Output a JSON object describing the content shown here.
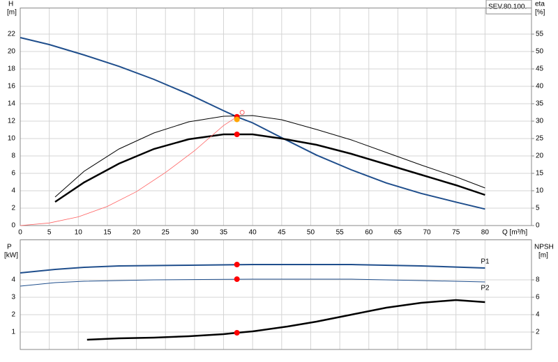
{
  "chart_data": [
    {
      "type": "line",
      "title": "SEV.80.100.",
      "y_label": "H",
      "y_unit": "[m]",
      "y2_label": "eta",
      "y2_unit": "[%]",
      "x_label": "Q [m³/h]",
      "xlim": [
        0,
        88
      ],
      "xticks": [
        0,
        5,
        10,
        15,
        20,
        25,
        30,
        35,
        40,
        45,
        50,
        55,
        60,
        65,
        70,
        75,
        80
      ],
      "ylim": [
        0,
        25
      ],
      "yticks": [
        0,
        2,
        4,
        6,
        8,
        10,
        12,
        14,
        16,
        18,
        20,
        22
      ],
      "y2lim": [
        0,
        62.5
      ],
      "y2ticks": [
        0,
        5,
        10,
        15,
        20,
        25,
        30,
        35,
        40,
        45,
        50,
        55
      ],
      "grid": true,
      "series": [
        {
          "color": "#1f4e8c",
          "x": [
            0,
            5,
            11,
            17,
            23,
            29,
            35,
            37.3,
            40,
            45,
            51,
            57,
            63,
            69,
            75,
            80
          ],
          "values": [
            21.6,
            20.8,
            19.6,
            18.3,
            16.8,
            15.1,
            13.2,
            12.5,
            11.8,
            10.1,
            8.1,
            6.4,
            4.9,
            3.7,
            2.7,
            1.9
          ]
        },
        {
          "color": "#000000",
          "axis": "y2",
          "x": [
            6,
            11,
            17,
            23,
            29,
            35,
            40,
            45,
            51,
            57,
            63,
            69,
            75,
            80
          ],
          "values": [
            8.2,
            15.6,
            22,
            26.6,
            29.8,
            31.4,
            31.6,
            30.4,
            27.6,
            24.6,
            21,
            17.4,
            14,
            10.8
          ]
        },
        {
          "color": "#000000",
          "axis": "y2",
          "x": [
            6,
            11,
            17,
            23,
            29,
            35,
            40,
            45,
            51,
            57,
            63,
            69,
            75,
            80
          ],
          "values": [
            6.8,
            12.4,
            17.8,
            22,
            24.8,
            26.2,
            26.2,
            25,
            23.2,
            20.6,
            17.6,
            14.6,
            11.6,
            8.8
          ]
        },
        {
          "color": "#ff6060",
          "x": [
            0,
            5,
            10,
            15,
            20,
            25,
            30,
            35,
            37.3
          ],
          "values": [
            0,
            0.3,
            1.0,
            2.2,
            3.9,
            6.1,
            8.6,
            11.5,
            12.5
          ]
        }
      ],
      "points": [
        {
          "x": 37.3,
          "y": 12.5,
          "color": "#ff0000"
        },
        {
          "x": 37.3,
          "y": 12.2,
          "color": "#ffa500"
        },
        {
          "x": 37.3,
          "y": 26.2,
          "axis": "y2",
          "color": "#ff0000"
        },
        {
          "x": 38.2,
          "y": 13,
          "color": "#ff6060",
          "hollow": true
        }
      ]
    },
    {
      "type": "line",
      "y_label": "P",
      "y_unit": "[kW]",
      "y2_label": "NPSH",
      "y2_unit": "[m]",
      "xlim": [
        0,
        88
      ],
      "xticks": [
        0,
        5,
        10,
        15,
        20,
        25,
        30,
        35,
        40,
        45,
        50,
        55,
        60,
        65,
        70,
        75,
        80
      ],
      "ylim": [
        0,
        6.3
      ],
      "yticks": [
        1,
        2,
        3,
        4
      ],
      "y2lim": [
        0,
        12.6
      ],
      "y2ticks": [
        2,
        4,
        6,
        8
      ],
      "grid": true,
      "series": [
        {
          "name": "P1",
          "color": "#1f4e8c",
          "x": [
            0,
            6,
            11,
            17,
            29,
            40,
            57,
            69,
            80
          ],
          "values": [
            4.4,
            4.6,
            4.72,
            4.8,
            4.84,
            4.88,
            4.88,
            4.8,
            4.68
          ]
        },
        {
          "name": "P2",
          "color": "#1f4e8c",
          "x": [
            0,
            6,
            11,
            23,
            40,
            57,
            69,
            80
          ],
          "values": [
            3.64,
            3.84,
            3.92,
            4.0,
            4.04,
            4.04,
            3.96,
            3.88
          ]
        },
        {
          "color": "#000000",
          "axis": "y2",
          "x": [
            11.5,
            17,
            23,
            29,
            35,
            37.3,
            40,
            46,
            51,
            57,
            63,
            69,
            75,
            80
          ],
          "values": [
            1.12,
            1.28,
            1.36,
            1.52,
            1.76,
            1.92,
            2.08,
            2.64,
            3.2,
            4.0,
            4.8,
            5.36,
            5.68,
            5.44
          ]
        }
      ],
      "points": [
        {
          "x": 37.3,
          "y": 4.88,
          "color": "#ff0000"
        },
        {
          "x": 37.3,
          "y": 4.04,
          "color": "#ff0000"
        },
        {
          "x": 37.3,
          "y": 1.92,
          "axis": "y2",
          "color": "#ff0000"
        }
      ]
    }
  ]
}
